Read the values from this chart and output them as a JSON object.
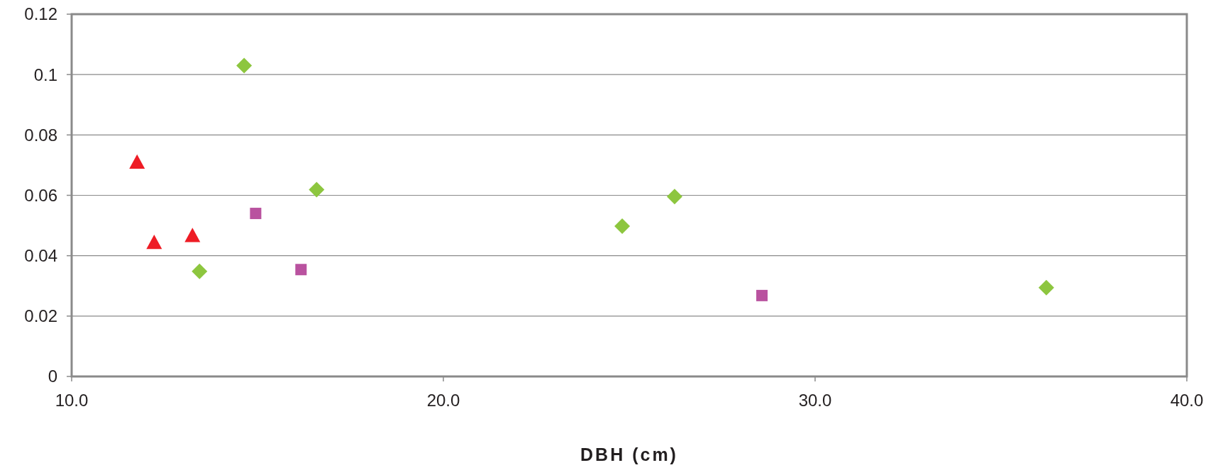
{
  "chart_data": {
    "type": "scatter",
    "xlabel": "DBH (cm)",
    "series": [
      {
        "color": "#ee1c25",
        "marker": "triangle",
        "x": [
          11.76,
          12.22,
          13.25
        ],
        "values": [
          0.071,
          0.0444,
          0.0467
        ]
      },
      {
        "color": "#b9529f",
        "marker": "square",
        "x": [
          14.95,
          16.17,
          28.57
        ],
        "values": [
          0.054,
          0.0354,
          0.0268
        ]
      },
      {
        "color": "#8dc63f",
        "marker": "diamond",
        "x": [
          14.64,
          13.44,
          16.59,
          24.81,
          26.22,
          36.22
        ],
        "values": [
          0.103,
          0.0348,
          0.0619,
          0.0498,
          0.0596,
          0.0294
        ]
      }
    ],
    "xlim": [
      10,
      40
    ],
    "xticks": [
      {
        "value": 10,
        "label": "10.0"
      },
      {
        "value": 20,
        "label": "20.0"
      },
      {
        "value": 30,
        "label": "30.0"
      },
      {
        "value": 40,
        "label": "40.0"
      }
    ],
    "ylim": [
      0,
      0.12
    ],
    "yticks": [
      0,
      0.02,
      0.04,
      0.06,
      0.08,
      0.1,
      0.12
    ],
    "grid": "y"
  }
}
